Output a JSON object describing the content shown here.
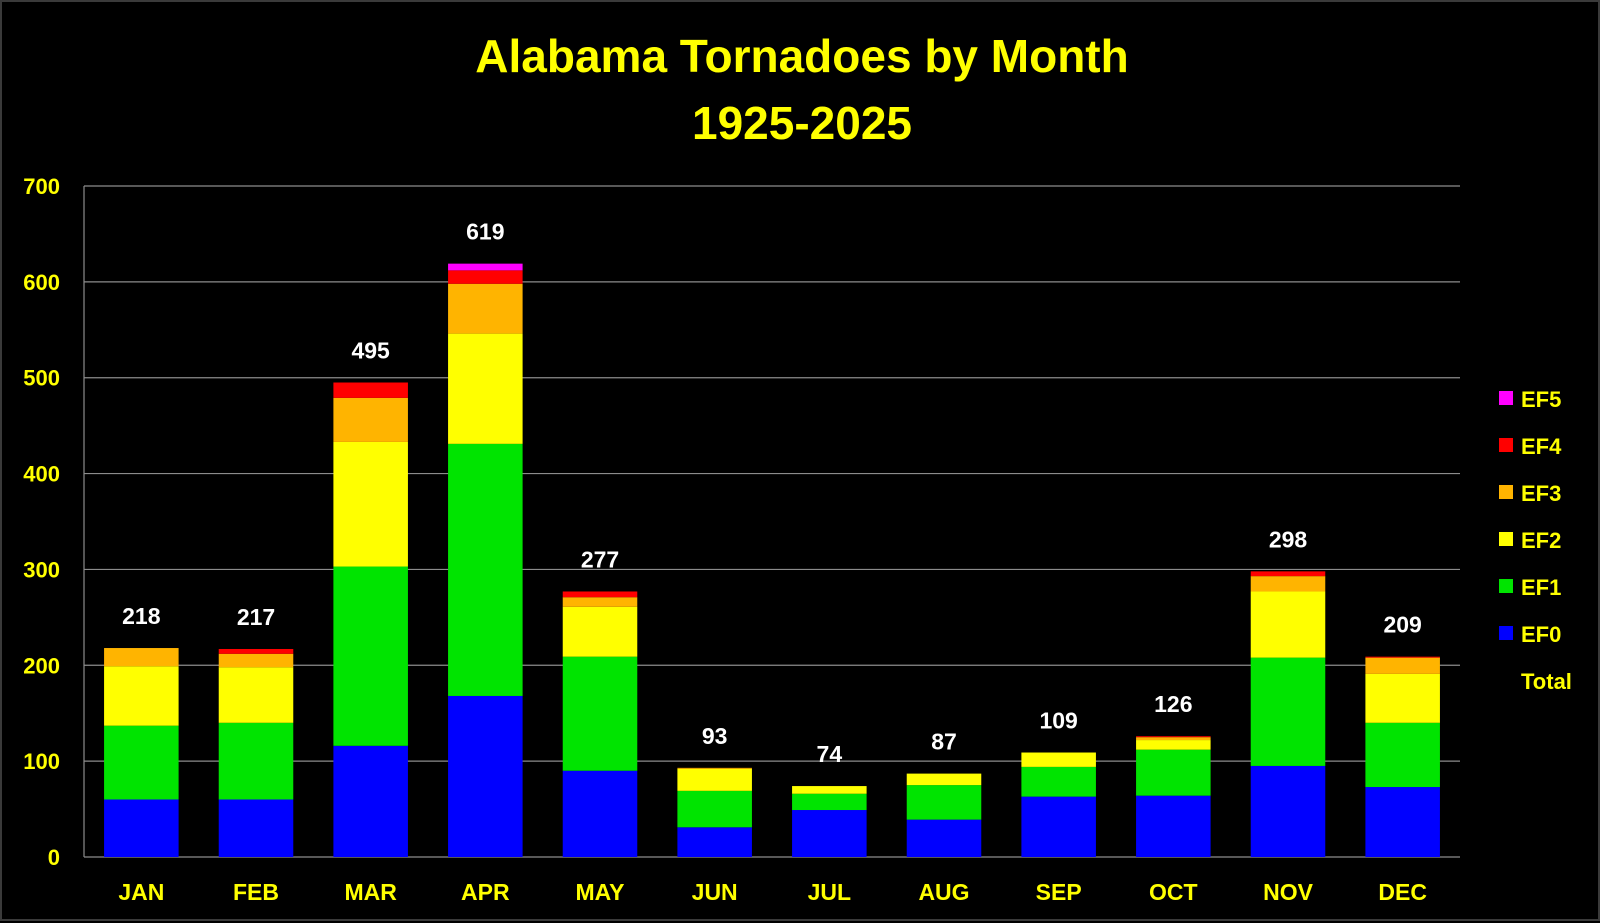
{
  "chart_data": {
    "type": "bar",
    "stacked": true,
    "title": "Alabama Tornadoes by Month",
    "subtitle": "1925-2025",
    "xlabel": "",
    "ylabel": "",
    "ylim": [
      0,
      700
    ],
    "yticks": [
      0,
      100,
      200,
      300,
      400,
      500,
      600,
      700
    ],
    "grid": true,
    "legend_position": "right",
    "categories": [
      "JAN",
      "FEB",
      "MAR",
      "APR",
      "MAY",
      "JUN",
      "JUL",
      "AUG",
      "SEP",
      "OCT",
      "NOV",
      "DEC"
    ],
    "series": [
      {
        "name": "EF0",
        "color": "#0000ff",
        "values": [
          60,
          60,
          116,
          168,
          90,
          31,
          49,
          39,
          63,
          64,
          95,
          73
        ]
      },
      {
        "name": "EF1",
        "color": "#00e400",
        "values": [
          77,
          80,
          187,
          263,
          119,
          38,
          17,
          36,
          31,
          48,
          113,
          67
        ]
      },
      {
        "name": "EF2",
        "color": "#ffff00",
        "values": [
          62,
          58,
          130,
          115,
          52,
          23,
          8,
          12,
          15,
          10,
          69,
          51
        ]
      },
      {
        "name": "EF3",
        "color": "#ffb400",
        "values": [
          19,
          14,
          46,
          52,
          10,
          1,
          0,
          0,
          0,
          3,
          16,
          17
        ]
      },
      {
        "name": "EF4",
        "color": "#ff0000",
        "values": [
          0,
          5,
          16,
          14,
          6,
          0,
          0,
          0,
          0,
          1,
          5,
          1
        ]
      },
      {
        "name": "EF5",
        "color": "#ff00ff",
        "values": [
          0,
          0,
          0,
          7,
          0,
          0,
          0,
          0,
          0,
          0,
          0,
          0
        ]
      }
    ],
    "totals_label": "Total",
    "totals": [
      218,
      217,
      495,
      619,
      277,
      93,
      74,
      87,
      109,
      126,
      298,
      209
    ]
  }
}
